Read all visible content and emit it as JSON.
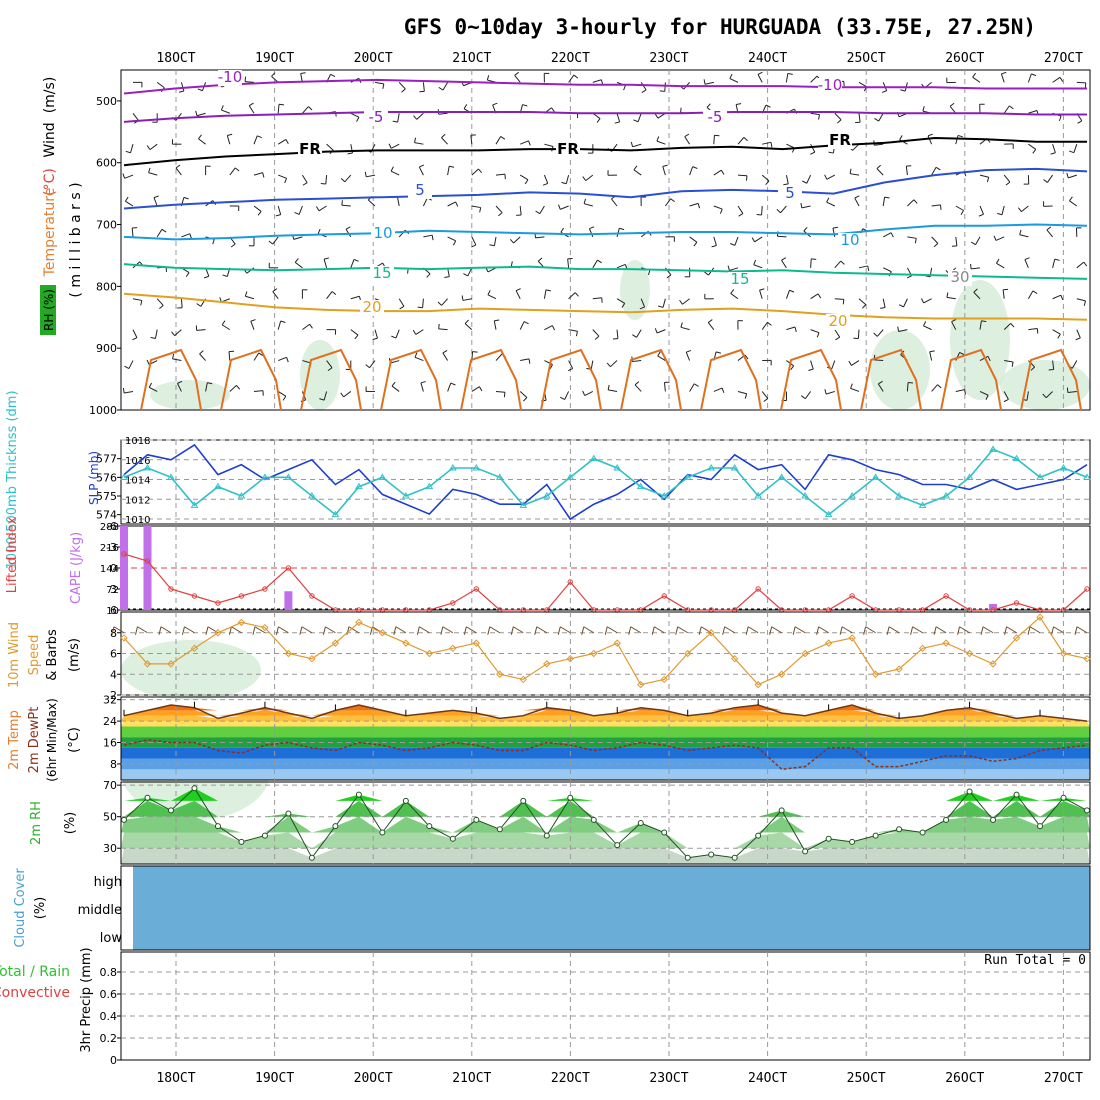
{
  "title": "GFS 0~10day 3-hourly for HURGUADA (33.75E, 27.25N)",
  "date_labels": [
    "18OCT",
    "19OCT",
    "20OCT",
    "21OCT",
    "22OCT",
    "23OCT",
    "24OCT",
    "25OCT",
    "26OCT",
    "27OCT"
  ],
  "colors": {
    "temp_m10": "#9a1fc0",
    "temp_m5": "#8a1fb8",
    "freeze": "#000000",
    "temp_5": "#2a4fcf",
    "temp_10": "#1a9ae0",
    "temp_15": "#10b890",
    "temp_20": "#e0a020",
    "temp_warm": "#e07020",
    "rh_fill": "#cfe8d2",
    "slp": "#1c3fd0",
    "thickness": "#30c0c8",
    "cape": "#c070e8",
    "lifted": "#e04040",
    "wind10": "#e09a30",
    "rh2m": "#30b030",
    "cloud": "#6aaed8"
  },
  "chart_data": [
    {
      "type": "line",
      "panel": "upper-air",
      "ylabel_parts": [
        "Temperature",
        "(°C)",
        "Wind",
        "(m/s)"
      ],
      "y2label": "RH (%)",
      "yunit_label": "( m i l l i b a r s )",
      "yticks": [
        500,
        600,
        700,
        800,
        900,
        1000
      ],
      "ylim": [
        1000,
        450
      ],
      "contour_labels": [
        "-10",
        "-5",
        "FR",
        "5",
        "10",
        "15",
        "20",
        "30"
      ],
      "series": [
        {
          "name": "-10",
          "color": "#9a1fc0",
          "values": [
            488,
            480,
            474,
            470,
            468,
            466,
            468,
            470,
            472,
            474,
            474,
            476,
            476,
            476,
            478,
            478,
            478,
            480,
            480,
            480
          ]
        },
        {
          "name": "-5",
          "color": "#8a1fb8",
          "values": [
            534,
            528,
            524,
            522,
            520,
            518,
            518,
            518,
            518,
            520,
            520,
            520,
            518,
            518,
            518,
            520,
            520,
            520,
            522,
            522
          ]
        },
        {
          "name": "FR",
          "color": "#000000",
          "values": [
            604,
            596,
            590,
            586,
            582,
            580,
            580,
            580,
            578,
            578,
            580,
            576,
            574,
            578,
            572,
            568,
            560,
            562,
            566,
            566
          ]
        },
        {
          "name": "5",
          "color": "#2a4fcf",
          "values": [
            674,
            668,
            664,
            660,
            658,
            656,
            654,
            652,
            648,
            650,
            656,
            646,
            644,
            646,
            650,
            632,
            620,
            612,
            610,
            614
          ]
        },
        {
          "name": "10",
          "color": "#1a9ae0",
          "values": [
            720,
            724,
            722,
            718,
            716,
            714,
            710,
            712,
            714,
            716,
            714,
            712,
            712,
            714,
            716,
            708,
            702,
            702,
            700,
            702
          ]
        },
        {
          "name": "15",
          "color": "#10b890",
          "values": [
            764,
            770,
            772,
            774,
            772,
            770,
            772,
            770,
            768,
            772,
            772,
            774,
            776,
            774,
            778,
            780,
            782,
            784,
            786,
            788
          ]
        },
        {
          "name": "20",
          "color": "#e0a020",
          "values": [
            812,
            818,
            826,
            834,
            838,
            840,
            840,
            836,
            838,
            840,
            842,
            838,
            836,
            840,
            846,
            850,
            852,
            852,
            852,
            854
          ]
        }
      ],
      "x": [
        0,
        0.5,
        1,
        1.5,
        2,
        2.5,
        3,
        3.5,
        4,
        4.5,
        5,
        5.5,
        6,
        6.5,
        7,
        7.5,
        8,
        8.5,
        9,
        9.5
      ]
    },
    {
      "type": "line",
      "panel": "slp-thickness",
      "ylabel": "1000-500mb Thicknss (dm)",
      "y2label": "SLP (mb)",
      "ylim": [
        573.5,
        578
      ],
      "y2lim": [
        1009.5,
        1018
      ],
      "yticks": [
        574,
        575,
        576,
        577
      ],
      "y2ticks": [
        1010,
        1012,
        1014,
        1016,
        1018
      ],
      "series": [
        {
          "name": "SLP (mb)",
          "color": "#1c3fd0",
          "axis": "right",
          "values": [
            1014.5,
            1016.5,
            1016,
            1017.5,
            1014.5,
            1015.5,
            1014,
            1015,
            1016,
            1013.5,
            1015,
            1012.5,
            1011.5,
            1010.5,
            1013,
            1012.5,
            1011.5,
            1011.5,
            1013.5,
            1010,
            1011.5,
            1012.5,
            1014,
            1012,
            1014.5,
            1014,
            1016.5,
            1015,
            1015.5,
            1013,
            1016.5,
            1016,
            1015,
            1014.5,
            1013.5,
            1013.5,
            1013,
            1014,
            1013,
            1013.5,
            1014,
            1015.5
          ]
        },
        {
          "name": "1000-500mb Thicknss (dm)",
          "color": "#30c0c8",
          "axis": "left",
          "values": [
            576,
            576.5,
            576,
            574.5,
            575.5,
            575,
            576,
            576,
            575,
            574,
            575.5,
            576,
            575,
            575.5,
            576.5,
            576.5,
            576,
            574.5,
            575,
            576,
            577,
            576.5,
            575.5,
            575,
            576,
            576.5,
            576.5,
            575,
            576,
            575,
            574,
            575,
            576,
            575,
            574.5,
            575,
            576,
            577.5,
            577,
            576,
            576.5,
            576
          ]
        }
      ]
    },
    {
      "type": "bar",
      "panel": "cape-li",
      "ylabel": "Lifted Index",
      "y2label": "CAPE (J/kg)",
      "yticks": [
        "-6",
        "-3",
        "0",
        "3",
        "6"
      ],
      "y2ticks": [
        "10",
        "72",
        "144",
        "216",
        "288"
      ],
      "cape_series": {
        "name": "CAPE (J/kg)",
        "color": "#c070e8",
        "values": [
          288,
          288,
          10,
          10,
          10,
          10,
          10,
          72,
          10,
          10,
          10,
          10,
          10,
          10,
          10,
          10,
          10,
          10,
          10,
          10,
          10,
          10,
          10,
          10,
          10,
          10,
          10,
          10,
          10,
          10,
          10,
          10,
          10,
          10,
          10,
          10,
          10,
          30,
          10,
          10,
          10,
          10
        ]
      },
      "lifted_series": {
        "name": "Lifted Index",
        "color": "#e04040",
        "values": [
          -2,
          -1,
          3,
          4,
          5,
          4,
          3,
          0,
          4,
          6,
          6,
          6,
          6,
          6,
          5,
          3,
          6,
          6,
          6,
          2,
          6,
          6,
          6,
          4,
          6,
          6,
          6,
          3,
          6,
          6,
          6,
          4,
          6,
          6,
          6,
          4,
          6,
          6,
          5,
          6,
          6,
          3
        ]
      }
    },
    {
      "type": "line",
      "panel": "wind10m",
      "ylabel": "10m Wind Speed & Barbs (m/s)",
      "ylim": [
        2,
        10
      ],
      "yticks": [
        2,
        4,
        6,
        8
      ],
      "series": [
        {
          "name": "10m Wind Speed",
          "color": "#e09a30",
          "values": [
            7.5,
            5,
            5,
            6.5,
            8,
            9,
            8.5,
            6,
            5.5,
            7,
            9,
            8,
            7,
            6,
            6.5,
            7,
            4,
            3.5,
            5,
            5.5,
            6,
            7,
            3,
            3.5,
            6,
            8,
            5.5,
            3,
            4,
            6,
            7,
            7.5,
            4,
            4.5,
            6.5,
            7,
            6,
            5,
            7.5,
            9.5,
            6,
            5.5
          ]
        }
      ]
    },
    {
      "type": "area",
      "panel": "temp-dewpt",
      "ylabel": "2m Temp 2m DewPt (6hr Min/Max) (°C)",
      "ylim": [
        2,
        33
      ],
      "yticks": [
        8,
        16,
        24,
        32
      ],
      "series": [
        {
          "name": "2m Temp",
          "color": "#6b3a1a",
          "values": [
            26,
            28,
            30,
            29,
            25,
            27,
            29,
            27,
            25,
            28,
            30,
            28,
            26,
            27,
            28,
            27,
            25,
            26,
            29,
            28,
            26,
            27,
            29,
            28,
            26,
            27,
            29,
            30,
            27,
            26,
            28,
            30,
            27,
            25,
            26,
            28,
            29,
            27,
            25,
            26,
            25,
            24
          ]
        },
        {
          "name": "2m DewPt",
          "color": "#8a3020",
          "values": [
            15,
            17,
            16,
            16,
            13,
            12,
            15,
            16,
            14,
            13,
            16,
            15,
            13,
            14,
            16,
            15,
            13,
            13,
            16,
            15,
            13,
            14,
            16,
            15,
            13,
            14,
            15,
            14,
            6,
            7,
            14,
            14,
            7,
            7,
            9,
            11,
            11,
            9,
            10,
            13,
            14,
            15
          ]
        }
      ]
    },
    {
      "type": "area",
      "panel": "rh2m",
      "ylabel": "2m RH (%)",
      "ylim": [
        20,
        72
      ],
      "yticks": [
        30,
        50,
        70
      ],
      "series": [
        {
          "name": "2m RH",
          "color": "#30b030",
          "values": [
            48,
            62,
            54,
            68,
            44,
            34,
            38,
            52,
            24,
            44,
            64,
            40,
            60,
            44,
            36,
            48,
            42,
            60,
            38,
            62,
            48,
            32,
            46,
            40,
            24,
            26,
            24,
            38,
            54,
            28,
            36,
            34,
            38,
            42,
            40,
            48,
            66,
            48,
            64,
            44,
            62,
            54
          ]
        }
      ]
    },
    {
      "type": "area",
      "panel": "cloud",
      "ylabel": "Cloud Cover (%)",
      "yticks": [
        "high",
        "middle",
        "low"
      ],
      "series": [
        {
          "name": "Cloud Cover",
          "color": "#6aaed8",
          "values": [
            100
          ]
        }
      ]
    },
    {
      "type": "line",
      "panel": "precip",
      "ylabel": "3hr Precip (mm)",
      "legend": [
        "Total / Rain",
        "Convective"
      ],
      "ylim": [
        0,
        1
      ],
      "yticks": [
        "0",
        "0.2",
        "0.4",
        "0.6",
        "0.8"
      ],
      "annotation": "Run Total = 0",
      "series": [
        {
          "name": "Total / Rain",
          "color": "#30c030",
          "values": [
            0
          ]
        }
      ]
    }
  ]
}
